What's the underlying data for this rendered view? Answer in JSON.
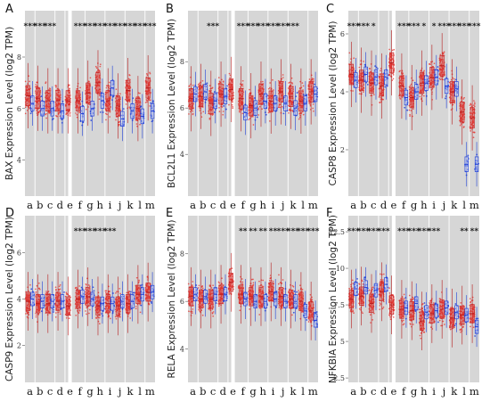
{
  "figure": {
    "categories": [
      "a",
      "b",
      "c",
      "d",
      "e",
      "f",
      "g",
      "h",
      "i",
      "j",
      "k",
      "l",
      "m"
    ],
    "colors": {
      "tumor": "#e53935",
      "normal": "#1e3fd8",
      "panel_bg": "#d6d6d6",
      "gap": "#ffffff"
    }
  },
  "chart_data": [
    {
      "type": "box",
      "panel": "A",
      "ylabel": "BAX Expression Level (log2 TPM)",
      "ylim": [
        2.6,
        9.8
      ],
      "yticks": [
        4,
        6,
        8
      ],
      "categories": [
        "a",
        "b",
        "c",
        "d",
        "e",
        "f",
        "g",
        "h",
        "i",
        "j",
        "k",
        "l",
        "m"
      ],
      "significance": [
        "***",
        "***",
        "***",
        "",
        "",
        "***",
        "***",
        "***",
        "***",
        "***",
        "***",
        "***",
        "***"
      ],
      "series": [
        {
          "medians": [
            6.5,
            6.4,
            6.3,
            6.3,
            6.3,
            6.3,
            6.6,
            7.0,
            6.3,
            6.1,
            6.7,
            6.0,
            6.8
          ]
        },
        {
          "medians": [
            6.2,
            6.0,
            6.0,
            5.9,
            null,
            5.8,
            6.0,
            6.3,
            6.8,
            5.6,
            5.9,
            5.7,
            5.9
          ]
        }
      ]
    },
    {
      "type": "box",
      "panel": "B",
      "ylabel": "BCL2L1 Expression Level (log2 TPM)",
      "ylim": [
        2.2,
        10.2
      ],
      "yticks": [
        4,
        6,
        8
      ],
      "categories": [
        "a",
        "b",
        "c",
        "d",
        "e",
        "f",
        "g",
        "h",
        "i",
        "j",
        "k",
        "l",
        "m"
      ],
      "significance": [
        "",
        "",
        "***",
        "",
        "",
        "***",
        "***",
        "***",
        "***",
        "***",
        "***",
        "",
        ""
      ],
      "series": [
        {
          "medians": [
            6.4,
            6.5,
            6.2,
            6.6,
            6.8,
            6.4,
            6.1,
            6.6,
            6.3,
            6.7,
            6.5,
            6.3,
            6.7
          ]
        },
        {
          "medians": [
            6.6,
            6.7,
            6.3,
            6.5,
            null,
            5.8,
            6.0,
            6.3,
            6.2,
            6.2,
            6.0,
            6.2,
            6.6
          ]
        }
      ]
    },
    {
      "type": "box",
      "panel": "C",
      "ylabel": "CASP8 Expression Level (log2 TPM)",
      "ylim": [
        0.4,
        6.8
      ],
      "yticks": [
        2,
        4,
        6
      ],
      "categories": [
        "a",
        "b",
        "c",
        "d",
        "e",
        "f",
        "g",
        "h",
        "i",
        "j",
        "k",
        "l",
        "m"
      ],
      "significance": [
        "***",
        "***",
        "*",
        "",
        "",
        "***",
        "***",
        "*",
        "*",
        "***",
        "***",
        "***",
        "***"
      ],
      "series": [
        {
          "medians": [
            4.6,
            4.4,
            4.3,
            4.2,
            5.0,
            4.2,
            3.8,
            4.3,
            4.5,
            4.9,
            4.0,
            3.3,
            3.1
          ]
        },
        {
          "medians": [
            4.4,
            4.6,
            4.5,
            4.5,
            null,
            3.8,
            4.0,
            4.3,
            4.5,
            4.2,
            4.1,
            1.5,
            1.5
          ]
        }
      ]
    },
    {
      "type": "box",
      "panel": "D",
      "ylabel": "CASP9 Expression Level (log2 TPM)",
      "ylim": [
        0.4,
        7.6
      ],
      "yticks": [
        2,
        4,
        6
      ],
      "categories": [
        "a",
        "b",
        "c",
        "d",
        "e",
        "f",
        "g",
        "h",
        "i",
        "j",
        "k",
        "l",
        "m"
      ],
      "significance": [
        "",
        "",
        "",
        "",
        "",
        "***",
        "***",
        "***",
        "***",
        "",
        "",
        "",
        ""
      ],
      "series": [
        {
          "medians": [
            3.9,
            3.8,
            3.8,
            3.9,
            3.7,
            4.0,
            4.1,
            3.7,
            3.8,
            3.7,
            3.8,
            4.2,
            4.3
          ]
        },
        {
          "medians": [
            4.0,
            3.9,
            3.9,
            3.9,
            null,
            4.1,
            4.0,
            3.8,
            3.8,
            3.9,
            3.9,
            4.2,
            4.3
          ]
        }
      ]
    },
    {
      "type": "box",
      "panel": "E",
      "ylabel": "RELA Expression Level (log2 TPM)",
      "ylim": [
        2.6,
        9.6
      ],
      "yticks": [
        4,
        6,
        8
      ],
      "categories": [
        "a",
        "b",
        "c",
        "d",
        "e",
        "f",
        "g",
        "h",
        "i",
        "j",
        "k",
        "l",
        "m"
      ],
      "significance": [
        "",
        "",
        "",
        "",
        "",
        "**",
        "**",
        "**",
        "**",
        "***",
        "***",
        "***",
        "***"
      ],
      "series": [
        {
          "medians": [
            6.2,
            6.1,
            6.1,
            6.3,
            6.8,
            6.3,
            6.2,
            6.2,
            6.4,
            6.2,
            6.1,
            6.0,
            5.6
          ]
        },
        {
          "medians": [
            6.3,
            6.2,
            6.3,
            6.3,
            null,
            6.1,
            6.0,
            6.0,
            6.1,
            6.0,
            6.0,
            5.6,
            5.2
          ]
        }
      ]
    },
    {
      "type": "box",
      "panel": "F",
      "ylabel": "NFKBIA Expression Level (log2 TPM)",
      "ylim": [
        2.2,
        13.6
      ],
      "yticks": [
        2.5,
        5.0,
        7.5,
        10.0,
        12.5
      ],
      "categories": [
        "a",
        "b",
        "c",
        "d",
        "e",
        "f",
        "g",
        "h",
        "i",
        "j",
        "k",
        "l",
        "m"
      ],
      "significance": [
        "***",
        "***",
        "***",
        "***",
        "",
        "***",
        "***",
        "***",
        "***",
        "",
        "",
        "**",
        "**"
      ],
      "series": [
        {
          "medians": [
            7.9,
            8.1,
            7.6,
            8.4,
            7.5,
            7.2,
            7.1,
            6.4,
            6.9,
            7.2,
            6.6,
            6.8,
            6.9
          ]
        },
        {
          "medians": [
            8.6,
            8.7,
            8.5,
            8.9,
            null,
            7.3,
            7.6,
            7.0,
            7.1,
            7.3,
            7.0,
            6.8,
            6.0
          ]
        }
      ]
    }
  ]
}
